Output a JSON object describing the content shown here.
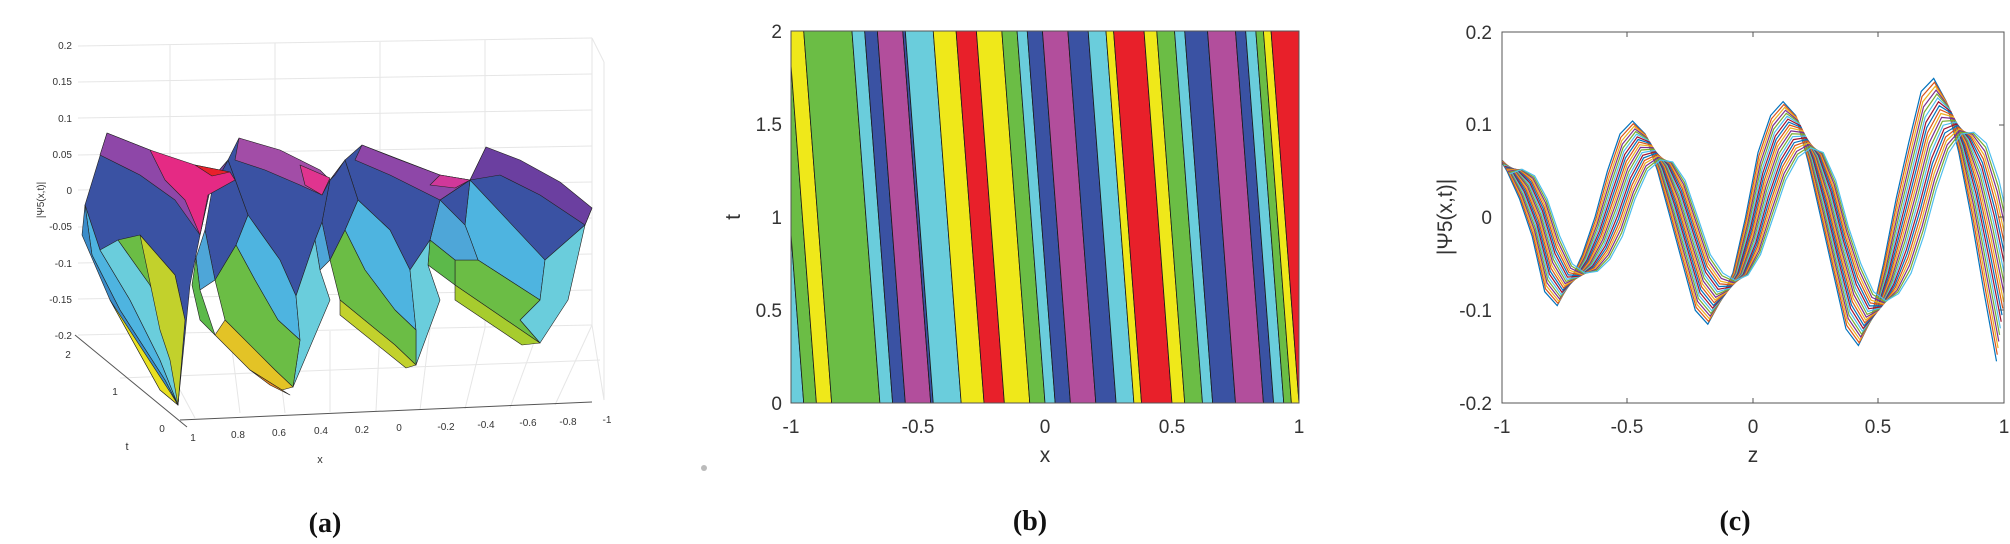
{
  "figure": {
    "captions": [
      "(a)",
      "(b)",
      "(c)"
    ]
  },
  "colors": {
    "contour_levels": [
      "#E8202A",
      "#B24E9C",
      "#3A52A3",
      "#6ACDDC",
      "#6BBD45",
      "#EFE81A"
    ],
    "line_cycle": [
      "#0072BD",
      "#D95319",
      "#EDB120",
      "#7E2F8E",
      "#77AC30",
      "#4DBEEE",
      "#A2142F"
    ],
    "axis": "#4d4d4d",
    "grid": "#e3e3e3"
  },
  "chart_data": [
    {
      "panel": "a",
      "type": "surface",
      "title": "",
      "xlabel": "x",
      "ylabel": "t",
      "zlabel": "|Ψ5(x,t)|",
      "xticks": [
        "1",
        "0.8",
        "0.6",
        "0.4",
        "0.2",
        "0",
        "-0.2",
        "-0.4",
        "-0.6",
        "-0.8",
        "-1"
      ],
      "yticks": [
        "0",
        "1",
        "2"
      ],
      "zticks": [
        "0.2",
        "0.15",
        "0.1",
        "0.05",
        "0",
        "-0.05",
        "-0.1",
        "-0.15",
        "-0.2"
      ],
      "xlim": [
        -1,
        1
      ],
      "ylim": [
        0,
        2
      ],
      "zlim": [
        -0.2,
        0.2
      ],
      "grid": true,
      "colormap": "hsv-like (magenta peaks → blue → cyan → green → yellow/orange troughs)",
      "ridges": 4
    },
    {
      "panel": "b",
      "type": "contour-filled",
      "xlabel": "x",
      "ylabel": "t",
      "xticks": [
        "-1",
        "-0.5",
        "0",
        "0.5",
        "1"
      ],
      "yticks": [
        "0",
        "0.5",
        "1",
        "1.5",
        "2"
      ],
      "xlim": [
        -1,
        1
      ],
      "ylim": [
        0,
        2
      ],
      "bands_bottom_x": [
        -1.0,
        -0.95,
        -0.9,
        -0.84,
        -0.65,
        -0.6,
        -0.55,
        -0.45,
        -0.44,
        -0.33,
        -0.24,
        -0.16,
        -0.06,
        0.0,
        0.04,
        0.1,
        0.2,
        0.28,
        0.35,
        0.38,
        0.5,
        0.55,
        0.62,
        0.66,
        0.75,
        0.86,
        0.9,
        0.94,
        0.97,
        1.0
      ],
      "band_sequence_bottom": [
        "blue",
        "cyan",
        "green",
        "yellow",
        "green",
        "cyan",
        "blue",
        "magenta",
        "blue",
        "cyan",
        "yellow",
        "red",
        "yellow",
        "green",
        "cyan",
        "blue",
        "magenta",
        "blue",
        "cyan",
        "yellow",
        "red",
        "yellow",
        "green",
        "cyan",
        "blue",
        "magenta",
        "blue",
        "cyan",
        "green",
        "yellow",
        "red"
      ]
    },
    {
      "panel": "c",
      "type": "line",
      "xlabel": "z",
      "ylabel": "|Ψ5(x,t)|",
      "xticks": [
        "-1",
        "-0.5",
        "0",
        "0.5",
        "1"
      ],
      "yticks": [
        "-0.2",
        "-0.1",
        "0",
        "0.1",
        "0.2"
      ],
      "xlim": [
        -1,
        1
      ],
      "ylim": [
        -0.2,
        0.2
      ],
      "grid": false,
      "series_count": 20,
      "upper_envelope": {
        "x": [
          -1.0,
          -0.95,
          -0.9,
          -0.85,
          -0.8,
          -0.75,
          -0.7,
          -0.65,
          -0.6,
          -0.55,
          -0.5,
          -0.45,
          -0.4,
          -0.35,
          -0.3,
          -0.25,
          -0.2,
          -0.15,
          -0.1,
          -0.05,
          0.0,
          0.05,
          0.1,
          0.15,
          0.2,
          0.25,
          0.3,
          0.35,
          0.4,
          0.45,
          0.5,
          0.55,
          0.6,
          0.65,
          0.7,
          0.75,
          0.8,
          0.85,
          0.9,
          0.95,
          1.0
        ],
        "y": [
          0.073,
          0.05,
          0.02,
          -0.02,
          -0.08,
          -0.095,
          -0.07,
          -0.04,
          0.0,
          0.05,
          0.09,
          0.104,
          0.09,
          0.05,
          0.0,
          -0.05,
          -0.1,
          -0.115,
          -0.09,
          -0.06,
          0.0,
          0.07,
          0.11,
          0.125,
          0.11,
          0.06,
          0.0,
          -0.06,
          -0.12,
          -0.138,
          -0.11,
          -0.05,
          0.02,
          0.08,
          0.136,
          0.15,
          0.125,
          0.07,
          0.0,
          -0.08,
          -0.155
        ]
      },
      "lower_envelope": {
        "x": [
          -1.0,
          -0.95,
          -0.9,
          -0.85,
          -0.8,
          -0.75,
          -0.7,
          -0.65,
          -0.6,
          -0.55,
          -0.5,
          -0.45,
          -0.4,
          -0.35,
          -0.3,
          -0.25,
          -0.2,
          -0.15,
          -0.1,
          -0.05,
          0.0,
          0.05,
          0.1,
          0.15,
          0.2,
          0.25,
          0.3,
          0.35,
          0.4,
          0.45,
          0.5,
          0.55,
          0.6,
          0.65,
          0.7,
          0.75,
          0.8,
          0.85,
          0.9,
          0.95,
          1.0
        ],
        "y": [
          0.047,
          0.052,
          0.045,
          0.02,
          -0.02,
          -0.05,
          -0.06,
          -0.058,
          -0.045,
          -0.02,
          0.02,
          0.05,
          0.062,
          0.06,
          0.04,
          0.0,
          -0.04,
          -0.06,
          -0.068,
          -0.062,
          -0.04,
          -0.0,
          0.04,
          0.065,
          0.075,
          0.07,
          0.04,
          -0.01,
          -0.05,
          -0.08,
          -0.09,
          -0.082,
          -0.06,
          -0.02,
          0.03,
          0.07,
          0.09,
          0.092,
          0.08,
          0.04,
          -0.02
        ]
      }
    }
  ]
}
